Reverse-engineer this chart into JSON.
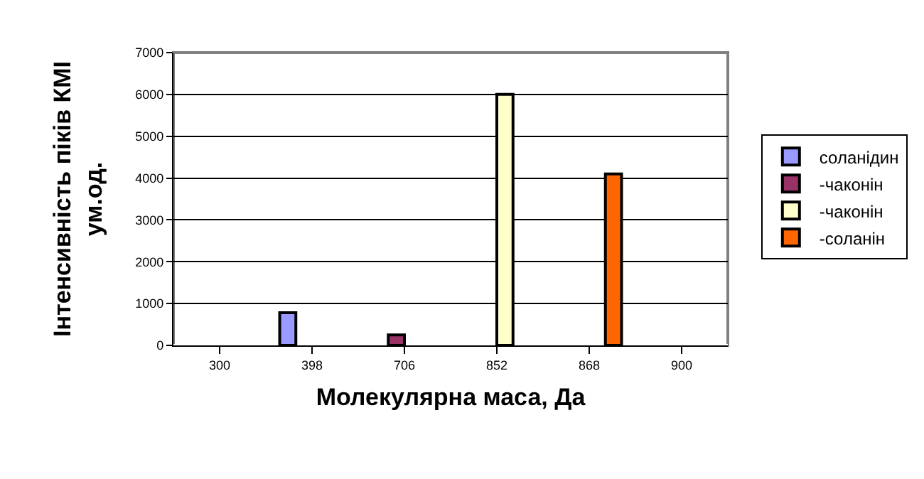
{
  "chart_data": {
    "type": "bar",
    "xlabel": "Молекулярна маса, Да",
    "ylabel": "Інтенсивність піків КМІ\nум.од.",
    "categories": [
      "300",
      "398",
      "706",
      "852",
      "868",
      "900"
    ],
    "series": [
      {
        "name": "соланідин",
        "color": "#9999ff",
        "values": [
          null,
          780,
          null,
          null,
          null,
          null
        ]
      },
      {
        "name": "-чаконін",
        "color": "#993366",
        "values": [
          null,
          null,
          250,
          null,
          null,
          null
        ]
      },
      {
        "name": "-чаконін",
        "color": "#ffffcc",
        "values": [
          null,
          null,
          null,
          6000,
          null,
          null
        ]
      },
      {
        "name": "-соланін",
        "color": "#ff6600",
        "values": [
          null,
          null,
          null,
          null,
          4100,
          null
        ]
      }
    ],
    "ylim": [
      0,
      7000
    ],
    "yticks": [
      0,
      1000,
      2000,
      3000,
      4000,
      5000,
      6000,
      7000
    ],
    "grid": "y",
    "legend": "right"
  }
}
